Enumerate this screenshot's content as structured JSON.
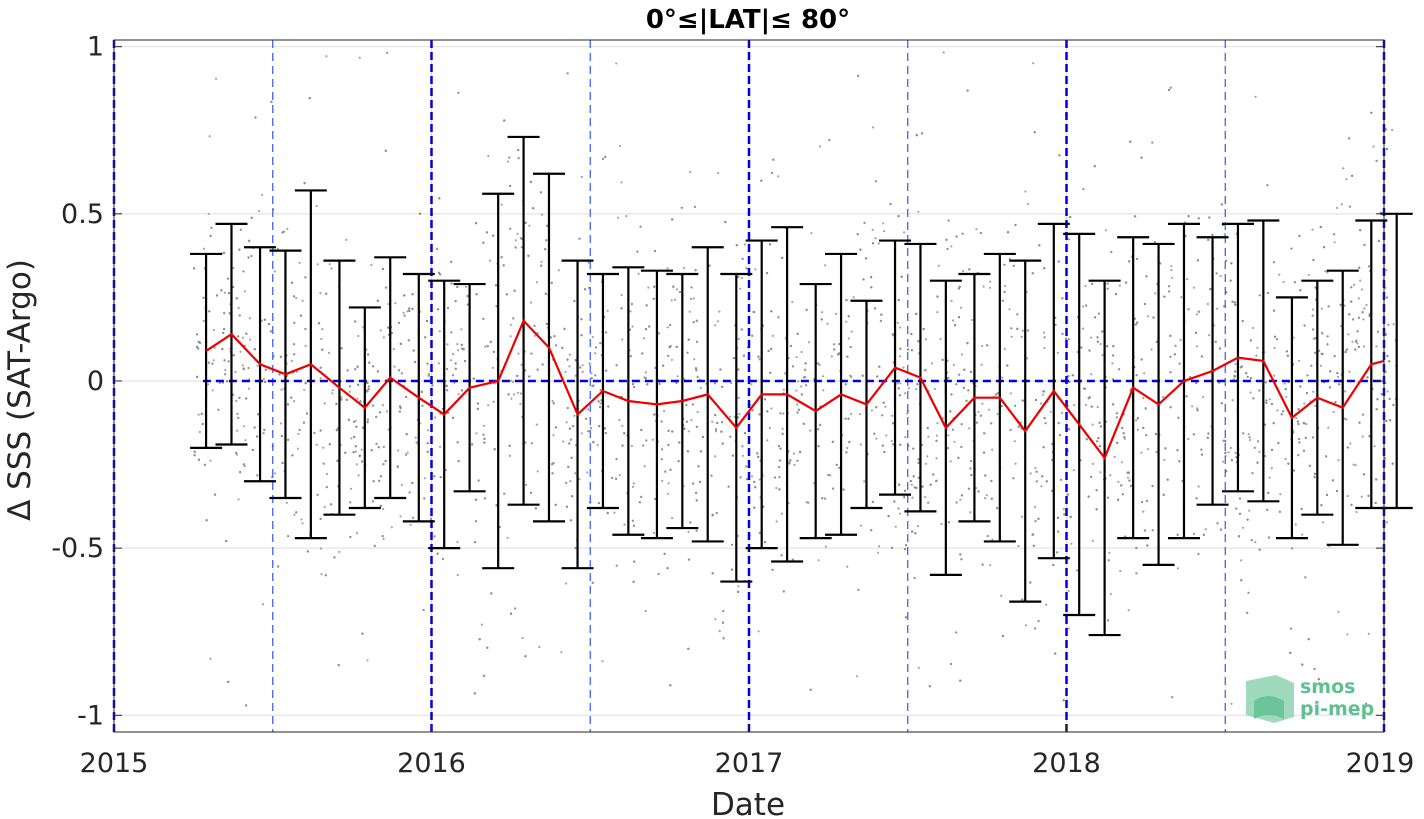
{
  "chart_data": {
    "type": "line",
    "title": "0°≤|LAT|≤ 80°",
    "xlabel": "Date",
    "ylabel": "Δ SSS (SAT-Argo)",
    "xlim": [
      2015,
      2019
    ],
    "ylim": [
      -1.05,
      1.02
    ],
    "x_ticks": [
      2015,
      2016,
      2017,
      2018,
      2019
    ],
    "x_tick_labels": [
      "2015",
      "2016",
      "2017",
      "2018",
      "2019"
    ],
    "y_ticks": [
      -1,
      -0.5,
      0,
      0.5,
      1
    ],
    "y_tick_labels": [
      "-1",
      "-0.5",
      "0",
      "0.5",
      "1"
    ],
    "grid": true,
    "reference_line": {
      "y": 0,
      "color": "#0000dd",
      "style": "dashed"
    },
    "year_lines": {
      "x": [
        2015,
        2016,
        2017,
        2018,
        2019
      ],
      "color": "#0000dd",
      "style": "dashed"
    },
    "half_year_lines": {
      "x": [
        2015.5,
        2016.5,
        2017.5,
        2018.5
      ],
      "color": "#3355ff",
      "style": "dashed"
    },
    "series": [
      {
        "kind": "monthly-mean",
        "color": "#ee0000",
        "x": [
          2015.29,
          2015.37,
          2015.46,
          2015.54,
          2015.62,
          2015.71,
          2015.79,
          2015.87,
          2015.96,
          2016.04,
          2016.12,
          2016.21,
          2016.29,
          2016.37,
          2016.46,
          2016.54,
          2016.62,
          2016.71,
          2016.79,
          2016.87,
          2016.96,
          2017.04,
          2017.12,
          2017.21,
          2017.29,
          2017.37,
          2017.46,
          2017.54,
          2017.62,
          2017.71,
          2017.79,
          2017.87,
          2017.96,
          2018.04,
          2018.12,
          2018.21,
          2018.29,
          2018.37,
          2018.46,
          2018.54,
          2018.62,
          2018.71,
          2018.79,
          2018.87,
          2018.96,
          2019.04
        ],
        "mean": [
          0.09,
          0.14,
          0.05,
          0.02,
          0.05,
          -0.02,
          -0.08,
          0.01,
          -0.05,
          -0.1,
          -0.02,
          0.0,
          0.18,
          0.1,
          -0.1,
          -0.03,
          -0.06,
          -0.07,
          -0.06,
          -0.04,
          -0.14,
          -0.04,
          -0.04,
          -0.09,
          -0.04,
          -0.07,
          0.04,
          0.01,
          -0.14,
          -0.05,
          -0.05,
          -0.15,
          -0.03,
          -0.13,
          -0.23,
          -0.02,
          -0.07,
          0.0,
          0.03,
          0.07,
          0.06,
          -0.11,
          -0.05,
          -0.08,
          0.05,
          0.06
        ],
        "std": [
          0.29,
          0.33,
          0.35,
          0.37,
          0.52,
          0.38,
          0.3,
          0.36,
          0.37,
          0.4,
          0.31,
          0.56,
          0.55,
          0.52,
          0.46,
          0.35,
          0.4,
          0.4,
          0.38,
          0.44,
          0.46,
          0.46,
          0.5,
          0.38,
          0.42,
          0.31,
          0.38,
          0.4,
          0.44,
          0.37,
          0.43,
          0.51,
          0.5,
          0.57,
          0.53,
          0.45,
          0.48,
          0.47,
          0.4,
          0.4,
          0.42,
          0.36,
          0.35,
          0.41,
          0.43,
          0.44
        ]
      },
      {
        "kind": "collocations",
        "color": "#8c8c8c",
        "note": "grey scatter points of individual satellite minus Argo differences"
      }
    ]
  },
  "logo": {
    "line1": "smos",
    "line2": "pi-mep",
    "color": "#5fbf8f"
  }
}
